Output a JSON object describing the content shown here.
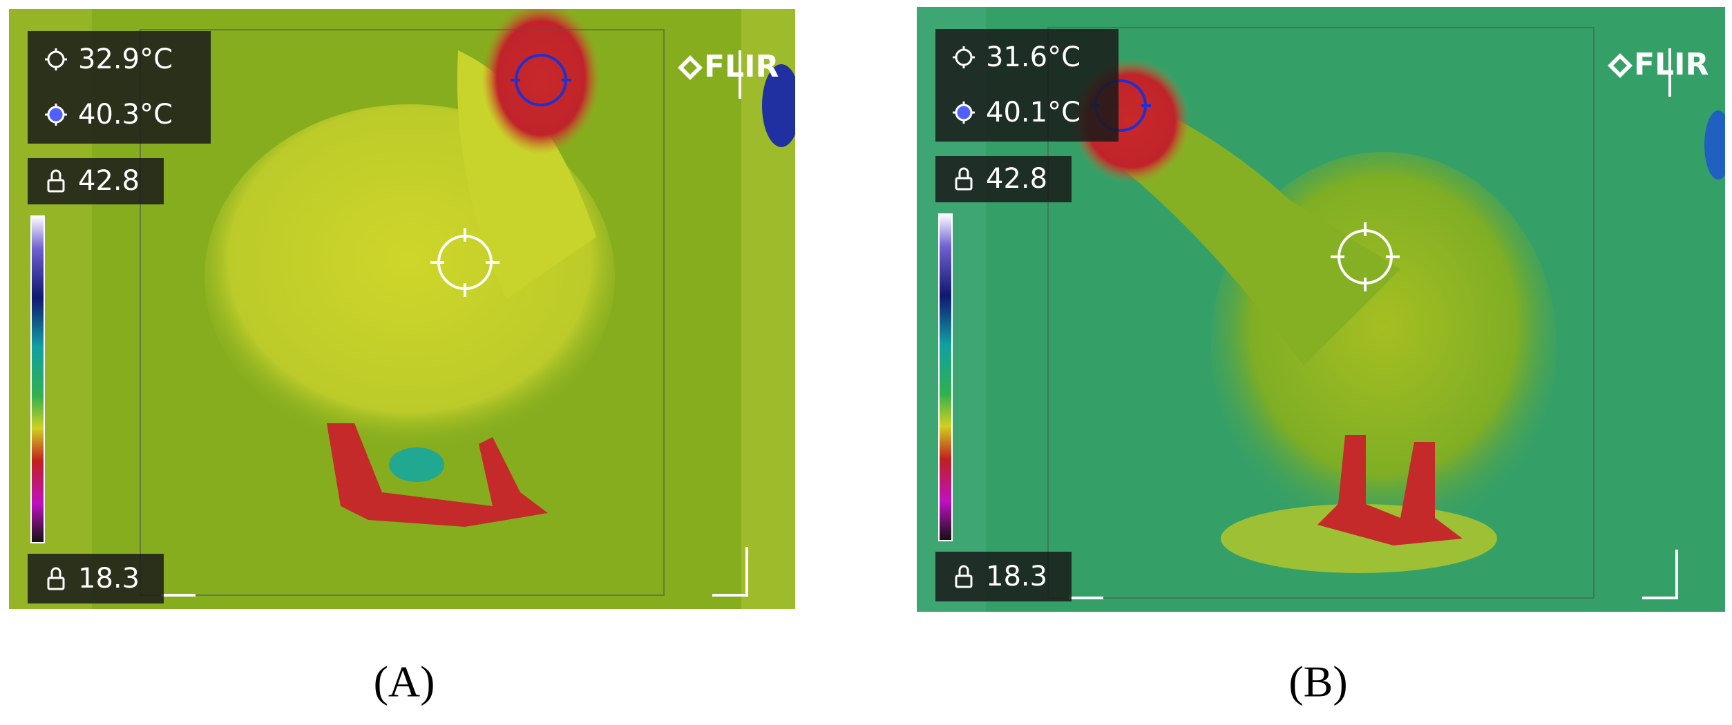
{
  "panels": [
    {
      "brand": "FLIR",
      "spot_temperature": "32.9°C",
      "max_spot_temperature": "40.3°C",
      "scale_max": "42.8",
      "scale_min": "18.3",
      "label": "(A)"
    },
    {
      "brand": "FLIR",
      "spot_temperature": "31.6°C",
      "max_spot_temperature": "40.1°C",
      "scale_max": "42.8",
      "scale_min": "18.3",
      "label": "(B)"
    }
  ]
}
